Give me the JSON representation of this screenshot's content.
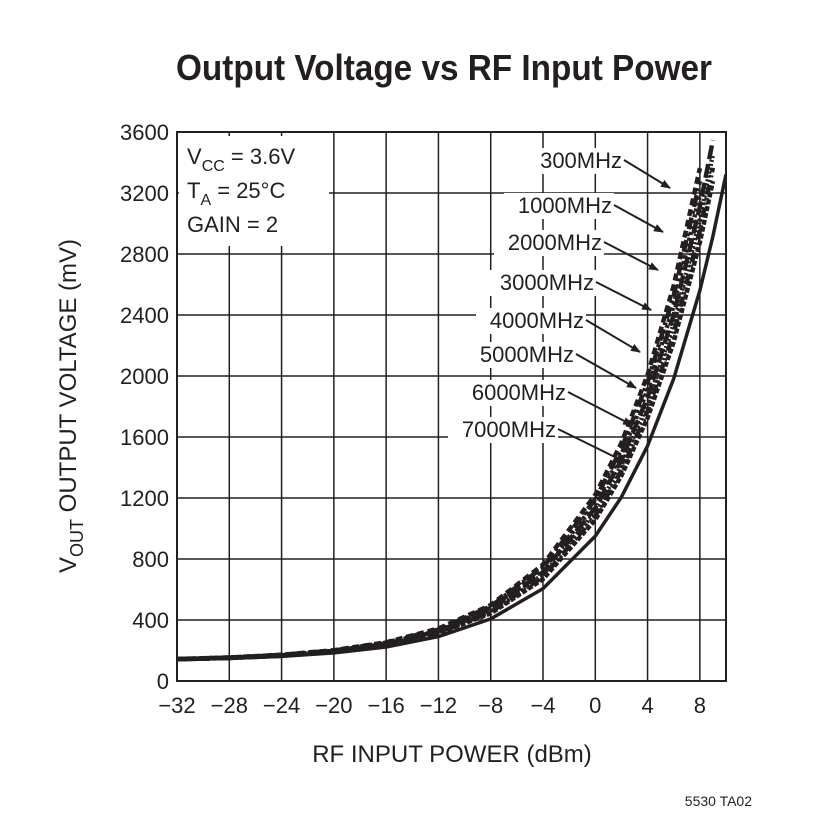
{
  "chart_data": {
    "type": "line",
    "title": "Output Voltage vs RF Input Power",
    "xlabel": "RF INPUT POWER (dBm)",
    "ylabel": {
      "main": "V",
      "sub": "OUT",
      "rest": " OUTPUT VOLTAGE (mV)"
    },
    "conditions": [
      {
        "main": "V",
        "sub": "CC",
        "rest": " = 3.6V"
      },
      {
        "main": "T",
        "sub": "A",
        "rest": " = 25°C"
      },
      {
        "main": "GAIN = 2"
      }
    ],
    "footnote": "5530 TA02",
    "x": [
      -32,
      -28,
      -24,
      -20,
      -16,
      -12,
      -8,
      -4,
      0,
      2,
      4,
      6,
      8,
      9,
      10
    ],
    "xlim": [
      -32,
      10
    ],
    "ylim": [
      0,
      3600
    ],
    "xticks": [
      {
        "value": -32,
        "label": "−32"
      },
      {
        "value": -28,
        "label": "−28"
      },
      {
        "value": -24,
        "label": "−24"
      },
      {
        "value": -20,
        "label": "−20"
      },
      {
        "value": -16,
        "label": "−16"
      },
      {
        "value": -12,
        "label": "−12"
      },
      {
        "value": -8,
        "label": "−8"
      },
      {
        "value": -4,
        "label": "−4"
      },
      0,
      4,
      8
    ],
    "yticks": [
      0,
      400,
      800,
      1200,
      1600,
      2000,
      2400,
      2800,
      3200,
      3600
    ],
    "grid": true,
    "series": [
      {
        "name": "300MHz",
        "color": "#231f20",
        "dash": "7,4",
        "values": [
          144,
          154,
          172,
          202,
          254,
          344,
          498,
          763,
          1221,
          1561,
          2008,
          2593,
          3363,
          null,
          null
        ]
      },
      {
        "name": "1000MHz",
        "color": "#231f20",
        "dash": "12,4,3,4",
        "values": [
          144,
          154,
          171,
          200,
          251,
          338,
          489,
          746,
          1192,
          1523,
          1959,
          2528,
          3278,
          null,
          null
        ]
      },
      {
        "name": "2000MHz",
        "color": "#231f20",
        "dash": "3,3",
        "values": [
          143,
          153,
          170,
          198,
          247,
          332,
          479,
          730,
          1163,
          1486,
          1909,
          2464,
          3193,
          null,
          null
        ]
      },
      {
        "name": "3000MHz",
        "color": "#231f20",
        "dash": "14,5",
        "values": [
          143,
          152,
          168,
          196,
          244,
          327,
          470,
          714,
          1135,
          1449,
          1861,
          2401,
          3110,
          3546,
          null
        ]
      },
      {
        "name": "4000MHz",
        "color": "#231f20",
        "dash": "2,2",
        "values": [
          143,
          152,
          167,
          195,
          241,
          322,
          460,
          698,
          1108,
          1414,
          1815,
          2339,
          3030,
          3454,
          null
        ]
      },
      {
        "name": "5000MHz",
        "color": "#231f20",
        "dash": "10,3,2,3,2,3",
        "values": [
          142,
          151,
          166,
          193,
          238,
          317,
          452,
          683,
          1082,
          1379,
          1769,
          2280,
          2952,
          3365,
          null
        ]
      },
      {
        "name": "6000MHz",
        "color": "#231f20",
        "dash": "5,2",
        "values": [
          142,
          151,
          165,
          191,
          235,
          312,
          443,
          668,
          1057,
          1346,
          1726,
          2223,
          2877,
          3278,
          null
        ]
      },
      {
        "name": "7000MHz",
        "color": "#231f20",
        "dash": "none",
        "values": [
          141,
          148,
          161,
          184,
          223,
          291,
          407,
          606,
          950,
          1206,
          1542,
          1982,
          2561,
          2916,
          3321
        ]
      }
    ]
  }
}
